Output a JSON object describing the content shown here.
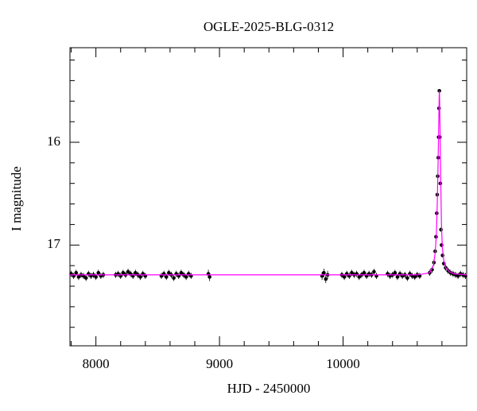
{
  "chart_data": {
    "type": "scatter",
    "title": "OGLE-2025-BLG-0312",
    "x_label": "HJD - 2450000",
    "y_label": "I magnitude",
    "xlim": [
      7790,
      11000
    ],
    "xticks": [
      8000,
      9000,
      10000
    ],
    "x_minor_ticks": [
      7800,
      8200,
      8400,
      8600,
      8800,
      9200,
      9400,
      9600,
      9800,
      10200,
      10400,
      10600,
      10800
    ],
    "ylim": [
      17.98,
      15.08
    ],
    "yticks": [
      16,
      17
    ],
    "y_minor_ticks": [
      15.2,
      15.4,
      15.6,
      15.8,
      16.2,
      16.4,
      16.6,
      16.8,
      17.2,
      17.4,
      17.6,
      17.8
    ],
    "series": [
      {
        "color": "#000000",
        "x": [
          7800,
          7820,
          7840,
          7860,
          7880,
          7900,
          7920,
          7940,
          7960,
          7980,
          8000,
          8020,
          8040,
          8060,
          8160,
          8180,
          8200,
          8220,
          8240,
          8260,
          8280,
          8300,
          8320,
          8340,
          8360,
          8380,
          8400,
          8530,
          8550,
          8570,
          8590,
          8610,
          8630,
          8650,
          8670,
          8690,
          8710,
          8730,
          8750,
          8770,
          8910,
          8920,
          9830,
          9845,
          9860,
          9875,
          9990,
          10010,
          10030,
          10050,
          10070,
          10090,
          10110,
          10130,
          10150,
          10170,
          10190,
          10210,
          10230,
          10250,
          10270,
          10360,
          10380,
          10400,
          10420,
          10440,
          10460,
          10480,
          10500,
          10520,
          10540,
          10560,
          10580,
          10600,
          10620,
          10700,
          10720,
          10735,
          10745,
          10752,
          10758,
          10762,
          10766,
          10770,
          10773,
          10776,
          10779,
          10783,
          10787,
          10792,
          10797,
          10805,
          10815,
          10830,
          10850,
          10870,
          10890,
          10910,
          10930,
          10950,
          10970,
          10990
        ],
        "values": [
          17.28,
          17.3,
          17.27,
          17.31,
          17.29,
          17.3,
          17.32,
          17.28,
          17.3,
          17.29,
          17.31,
          17.27,
          17.3,
          17.29,
          17.29,
          17.28,
          17.3,
          17.27,
          17.29,
          17.26,
          17.28,
          17.3,
          17.27,
          17.29,
          17.31,
          17.28,
          17.3,
          17.3,
          17.28,
          17.31,
          17.27,
          17.29,
          17.32,
          17.28,
          17.3,
          17.27,
          17.29,
          17.31,
          17.28,
          17.3,
          17.28,
          17.31,
          17.3,
          17.27,
          17.33,
          17.29,
          17.29,
          17.31,
          17.28,
          17.3,
          17.27,
          17.29,
          17.28,
          17.31,
          17.29,
          17.27,
          17.3,
          17.28,
          17.29,
          17.26,
          17.3,
          17.28,
          17.3,
          17.29,
          17.27,
          17.31,
          17.28,
          17.3,
          17.29,
          17.32,
          17.28,
          17.3,
          17.31,
          17.29,
          17.3,
          17.27,
          17.24,
          17.17,
          17.06,
          16.92,
          16.69,
          16.51,
          16.33,
          16.15,
          15.95,
          15.67,
          15.5,
          15.95,
          16.4,
          16.85,
          17.0,
          17.1,
          17.18,
          17.22,
          17.25,
          17.27,
          17.28,
          17.29,
          17.3,
          17.28,
          17.29,
          17.3
        ],
        "errors": [
          0.03,
          0.03,
          0.03,
          0.03,
          0.03,
          0.03,
          0.03,
          0.03,
          0.03,
          0.03,
          0.03,
          0.03,
          0.03,
          0.03,
          0.03,
          0.03,
          0.03,
          0.03,
          0.03,
          0.03,
          0.03,
          0.03,
          0.03,
          0.03,
          0.03,
          0.03,
          0.03,
          0.03,
          0.03,
          0.03,
          0.03,
          0.03,
          0.03,
          0.03,
          0.03,
          0.03,
          0.03,
          0.03,
          0.03,
          0.03,
          0.04,
          0.04,
          0.04,
          0.04,
          0.04,
          0.04,
          0.03,
          0.03,
          0.03,
          0.03,
          0.03,
          0.03,
          0.03,
          0.03,
          0.03,
          0.03,
          0.03,
          0.03,
          0.03,
          0.03,
          0.03,
          0.03,
          0.03,
          0.03,
          0.03,
          0.03,
          0.03,
          0.03,
          0.03,
          0.03,
          0.03,
          0.03,
          0.03,
          0.03,
          0.03,
          0.03,
          0.03,
          0.03,
          0.02,
          0.02,
          0.02,
          0.02,
          0.01,
          0.01,
          0.01,
          0.01,
          0.01,
          0.01,
          0.01,
          0.02,
          0.02,
          0.02,
          0.02,
          0.03,
          0.03,
          0.03,
          0.03,
          0.03,
          0.03,
          0.03,
          0.03,
          0.03
        ]
      },
      {
        "color": "#ff00ff",
        "line": true,
        "x": [
          7790,
          10600,
          10700,
          10730,
          10745,
          10755,
          10762,
          10768,
          10773,
          10777,
          10779,
          10781,
          10785,
          10790,
          10796,
          10803,
          10815,
          10830,
          10860,
          10900,
          11000
        ],
        "values": [
          17.29,
          17.29,
          17.27,
          17.2,
          17.08,
          16.9,
          16.6,
          16.25,
          15.9,
          15.6,
          15.5,
          15.58,
          15.9,
          16.35,
          16.8,
          17.02,
          17.15,
          17.22,
          17.26,
          17.28,
          17.29
        ]
      }
    ]
  }
}
